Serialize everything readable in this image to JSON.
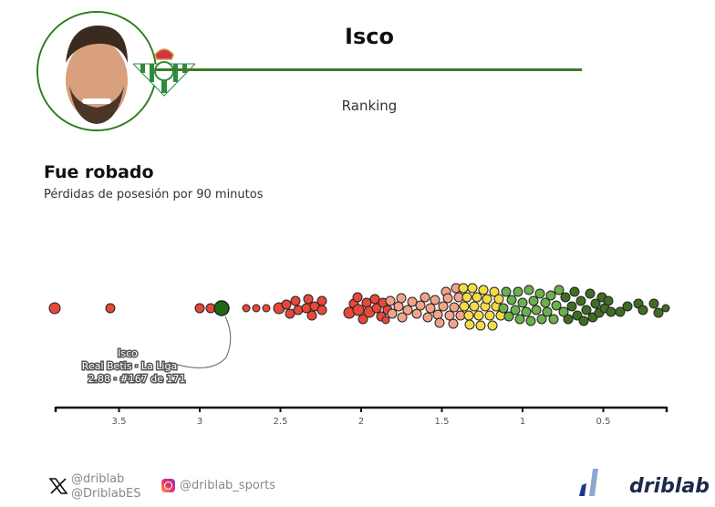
{
  "header": {
    "player_name": "Isco",
    "subtitle": "Ranking",
    "accent_color": "#3e7a2a",
    "club_crest": "real-betis-crest"
  },
  "stat": {
    "title": "Fue robado",
    "description": "Pérdidas de posesión por 90 minutos"
  },
  "annotation": {
    "line1": "Isco",
    "line2": "Real Betis · La Liga",
    "line3": "2.88 · #167 de 171"
  },
  "footer": {
    "x_handle_1": "@driblab",
    "x_handle_2": "@DriblabES",
    "instagram_handle": "@driblab_sports",
    "brand": "driblab"
  },
  "chart_data": {
    "type": "scatter",
    "subtype": "beeswarm",
    "title": "Fue robado",
    "subtitle": "Pérdidas de posesión por 90 minutos",
    "xlabel": "",
    "ylabel": "",
    "x_axis_reversed": true,
    "xlim": [
      3.95,
      0.1
    ],
    "x_ticks": [
      3.5,
      3,
      2.5,
      2,
      1.5,
      1,
      0.5
    ],
    "x_tick_labels": [
      "3.5",
      "3",
      "2.5",
      "2",
      "1.5",
      "1",
      "0.5"
    ],
    "grid": false,
    "legend": null,
    "n_players": 171,
    "highlight": {
      "name": "Isco",
      "team": "Real Betis",
      "league": "La Liga",
      "value": 2.88,
      "rank": 167,
      "total": 171,
      "color": "#1e6b12"
    },
    "color_bins": [
      {
        "range": "> ~1.85",
        "color": "#e8483a"
      },
      {
        "range": "~1.85–1.5",
        "color": "#f2a48a"
      },
      {
        "range": "~1.5–1.2",
        "color": "#f5dc45"
      },
      {
        "range": "~1.2–0.8",
        "color": "#6ab04c"
      },
      {
        "range": "< ~0.8",
        "color": "#3f6e22"
      }
    ],
    "approx_values": [
      3.9,
      3.59,
      2.98,
      2.93,
      2.88,
      2.76,
      2.72,
      2.68,
      2.6,
      2.57,
      2.55,
      2.52,
      2.5,
      2.48,
      2.46,
      2.44,
      2.42,
      2.4,
      2.38,
      2.3,
      2.28,
      2.26
    ]
  },
  "points": [
    [
      60,
      338,
      6,
      "#e8483a"
    ],
    [
      121,
      338,
      5,
      "#e8483a"
    ],
    [
      219,
      338,
      5,
      "#e8483a"
    ],
    [
      231,
      338,
      5,
      "#e8483a"
    ],
    [
      270,
      338,
      4,
      "#e8483a"
    ],
    [
      281,
      338,
      4,
      "#e8483a"
    ],
    [
      292,
      338,
      4,
      "#e8483a"
    ],
    [
      306,
      338,
      6,
      "#e8483a"
    ],
    [
      314,
      334,
      5,
      "#e8483a"
    ],
    [
      318,
      344,
      5,
      "#e8483a"
    ],
    [
      324,
      330,
      5,
      "#e8483a"
    ],
    [
      327,
      340,
      5,
      "#e8483a"
    ],
    [
      336,
      338,
      5,
      "#e8483a"
    ],
    [
      338,
      328,
      5,
      "#e8483a"
    ],
    [
      342,
      346,
      5,
      "#e8483a"
    ],
    [
      345,
      336,
      5,
      "#e8483a"
    ],
    [
      353,
      340,
      5,
      "#e8483a"
    ],
    [
      353,
      330,
      5,
      "#e8483a"
    ],
    [
      383,
      343,
      6,
      "#e8483a"
    ],
    [
      388,
      333,
      5,
      "#e8483a"
    ],
    [
      392,
      326,
      5,
      "#e8483a"
    ],
    [
      393,
      340,
      6,
      "#e8483a"
    ],
    [
      398,
      350,
      5,
      "#e8483a"
    ],
    [
      402,
      332,
      5,
      "#e8483a"
    ],
    [
      405,
      342,
      6,
      "#e8483a"
    ],
    [
      411,
      328,
      5,
      "#e8483a"
    ],
    [
      413,
      338,
      5,
      "#e8483a"
    ],
    [
      418,
      347,
      5,
      "#e8483a"
    ],
    [
      420,
      332,
      5,
      "#e8483a"
    ],
    [
      425,
      340,
      5,
      "#e8483a"
    ],
    [
      423,
      351,
      4,
      "#e8483a"
    ],
    [
      428,
      330,
      5,
      "#f2a48a"
    ],
    [
      430,
      344,
      5,
      "#f2a48a"
    ],
    [
      437,
      336,
      5,
      "#f2a48a"
    ],
    [
      440,
      327,
      5,
      "#f2a48a"
    ],
    [
      441,
      348,
      5,
      "#f2a48a"
    ],
    [
      447,
      340,
      5,
      "#f2a48a"
    ],
    [
      452,
      331,
      5,
      "#f2a48a"
    ],
    [
      457,
      344,
      5,
      "#f2a48a"
    ],
    [
      461,
      335,
      5,
      "#f2a48a"
    ],
    [
      466,
      326,
      5,
      "#f2a48a"
    ],
    [
      469,
      348,
      5,
      "#f2a48a"
    ],
    [
      472,
      338,
      5,
      "#f2a48a"
    ],
    [
      477,
      329,
      5,
      "#f2a48a"
    ],
    [
      480,
      345,
      5,
      "#f2a48a"
    ],
    [
      482,
      354,
      5,
      "#f2a48a"
    ],
    [
      486,
      336,
      5,
      "#f2a48a"
    ],
    [
      489,
      320,
      5,
      "#f2a48a"
    ],
    [
      491,
      327,
      5,
      "#f2a48a"
    ],
    [
      493,
      346,
      5,
      "#f2a48a"
    ],
    [
      497,
      355,
      5,
      "#f2a48a"
    ],
    [
      498,
      337,
      5,
      "#f2a48a"
    ],
    [
      500,
      316,
      5,
      "#f2a48a"
    ],
    [
      503,
      326,
      5,
      "#f2a48a"
    ],
    [
      505,
      346,
      5,
      "#f2a48a"
    ],
    [
      508,
      316,
      5,
      "#f5dc45"
    ],
    [
      509,
      336,
      5,
      "#f5dc45"
    ],
    [
      512,
      326,
      5,
      "#f5dc45"
    ],
    [
      514,
      346,
      5,
      "#f5dc45"
    ],
    [
      515,
      356,
      5,
      "#f5dc45"
    ],
    [
      518,
      316,
      5,
      "#f5dc45"
    ],
    [
      520,
      336,
      5,
      "#f5dc45"
    ],
    [
      523,
      326,
      5,
      "#f5dc45"
    ],
    [
      525,
      346,
      5,
      "#f5dc45"
    ],
    [
      527,
      357,
      5,
      "#f5dc45"
    ],
    [
      530,
      318,
      5,
      "#f5dc45"
    ],
    [
      532,
      336,
      5,
      "#f5dc45"
    ],
    [
      534,
      328,
      5,
      "#f5dc45"
    ],
    [
      537,
      346,
      5,
      "#f5dc45"
    ],
    [
      540,
      357,
      5,
      "#f5dc45"
    ],
    [
      542,
      320,
      5,
      "#f5dc45"
    ],
    [
      544,
      336,
      5,
      "#f5dc45"
    ],
    [
      547,
      328,
      5,
      "#f5dc45"
    ],
    [
      549,
      346,
      5,
      "#f5dc45"
    ],
    [
      552,
      338,
      5,
      "#6ab04c"
    ],
    [
      555,
      320,
      5,
      "#6ab04c"
    ],
    [
      558,
      347,
      5,
      "#6ab04c"
    ],
    [
      561,
      329,
      5,
      "#6ab04c"
    ],
    [
      565,
      340,
      5,
      "#6ab04c"
    ],
    [
      568,
      320,
      5,
      "#6ab04c"
    ],
    [
      570,
      350,
      5,
      "#6ab04c"
    ],
    [
      573,
      332,
      5,
      "#6ab04c"
    ],
    [
      577,
      342,
      5,
      "#6ab04c"
    ],
    [
      580,
      318,
      5,
      "#6ab04c"
    ],
    [
      582,
      352,
      5,
      "#6ab04c"
    ],
    [
      585,
      330,
      5,
      "#6ab04c"
    ],
    [
      588,
      340,
      5,
      "#6ab04c"
    ],
    [
      592,
      322,
      5,
      "#6ab04c"
    ],
    [
      594,
      350,
      5,
      "#6ab04c"
    ],
    [
      598,
      332,
      5,
      "#6ab04c"
    ],
    [
      600,
      342,
      5,
      "#6ab04c"
    ],
    [
      604,
      324,
      5,
      "#6ab04c"
    ],
    [
      607,
      350,
      5,
      "#6ab04c"
    ],
    [
      610,
      335,
      5,
      "#6ab04c"
    ],
    [
      613,
      318,
      5,
      "#6ab04c"
    ],
    [
      618,
      342,
      5,
      "#6ab04c"
    ],
    [
      620,
      326,
      5,
      "#3f6e22"
    ],
    [
      623,
      350,
      5,
      "#3f6e22"
    ],
    [
      627,
      336,
      5,
      "#3f6e22"
    ],
    [
      630,
      320,
      5,
      "#3f6e22"
    ],
    [
      633,
      346,
      5,
      "#3f6e22"
    ],
    [
      637,
      330,
      5,
      "#3f6e22"
    ],
    [
      640,
      352,
      5,
      "#3f6e22"
    ],
    [
      643,
      340,
      5,
      "#3f6e22"
    ],
    [
      647,
      322,
      5,
      "#3f6e22"
    ],
    [
      650,
      348,
      5,
      "#3f6e22"
    ],
    [
      653,
      333,
      5,
      "#3f6e22"
    ],
    [
      657,
      343,
      5,
      "#3f6e22"
    ],
    [
      660,
      326,
      5,
      "#3f6e22"
    ],
    [
      663,
      338,
      5,
      "#3f6e22"
    ],
    [
      667,
      330,
      5,
      "#3f6e22"
    ],
    [
      670,
      342,
      5,
      "#3f6e22"
    ],
    [
      680,
      342,
      5,
      "#3f6e22"
    ],
    [
      688,
      336,
      5,
      "#3f6e22"
    ],
    [
      700,
      333,
      5,
      "#3f6e22"
    ],
    [
      705,
      340,
      5,
      "#3f6e22"
    ],
    [
      717,
      333,
      5,
      "#3f6e22"
    ],
    [
      722,
      343,
      5,
      "#3f6e22"
    ],
    [
      730,
      338,
      4,
      "#3f6e22"
    ]
  ]
}
